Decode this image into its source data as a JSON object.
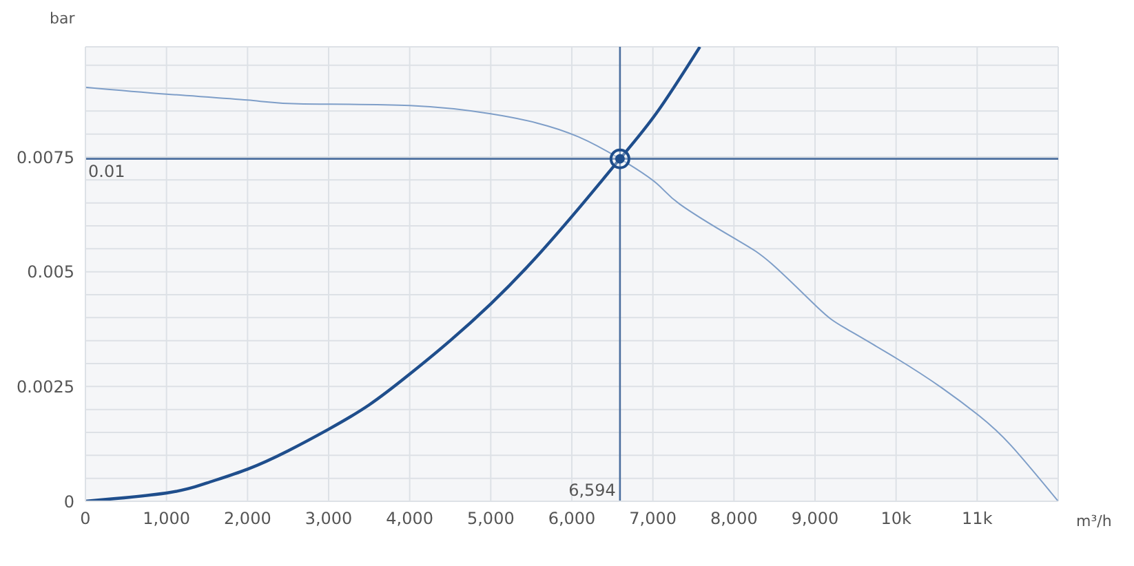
{
  "chart_data": {
    "type": "line",
    "xlabel": "m³/h",
    "ylabel": "bar",
    "xlim": [
      0,
      12000
    ],
    "ylim": [
      0,
      0.0099
    ],
    "xticks": [
      0,
      {
        "value": 1000,
        "label": "1,000"
      },
      {
        "value": 2000,
        "label": "2,000"
      },
      {
        "value": 3000,
        "label": "3,000"
      },
      {
        "value": 4000,
        "label": "4,000"
      },
      {
        "value": 5000,
        "label": "5,000"
      },
      {
        "value": 6000,
        "label": "6,000"
      },
      {
        "value": 7000,
        "label": "7,000"
      },
      {
        "value": 8000,
        "label": "8,000"
      },
      {
        "value": 9000,
        "label": "9,000"
      },
      {
        "value": 10000,
        "label": "10k"
      },
      {
        "value": 11000,
        "label": "11k"
      }
    ],
    "yticks": [
      0,
      {
        "value": 0.0005,
        "label": null
      },
      {
        "value": 0.001,
        "label": null
      },
      {
        "value": 0.0015,
        "label": null
      },
      {
        "value": 0.002,
        "label": null
      },
      0.0025,
      {
        "value": 0.003,
        "label": null
      },
      {
        "value": 0.0035,
        "label": null
      },
      {
        "value": 0.004,
        "label": null
      },
      {
        "value": 0.0045,
        "label": null
      },
      0.005,
      {
        "value": 0.0055,
        "label": null
      },
      {
        "value": 0.006,
        "label": null
      },
      {
        "value": 0.0065,
        "label": null
      },
      {
        "value": 0.007,
        "label": null
      },
      0.0075,
      {
        "value": 0.008,
        "label": null
      },
      {
        "value": 0.0085,
        "label": null
      },
      {
        "value": 0.009,
        "label": null
      },
      {
        "value": 0.0095,
        "label": null
      }
    ],
    "grid": true,
    "line_style": "solid",
    "series": [
      {
        "type": "line",
        "color": "#7e9ec8",
        "marker": "none",
        "x": [
          0,
          1000,
          2000,
          2623,
          4000,
          5000,
          5570,
          6080,
          6594,
          7050,
          7333,
          8013,
          8467,
          9034,
          9374,
          9998,
          10565,
          11019,
          11415,
          12000
        ],
        "values": [
          0.00902,
          0.00887,
          0.00874,
          0.00866,
          0.00862,
          0.00844,
          0.00824,
          0.00794,
          0.00746,
          0.00692,
          0.00647,
          0.00572,
          0.00517,
          0.00422,
          0.00377,
          0.00312,
          0.00247,
          0.00187,
          0.00122,
          0
        ]
      },
      {
        "type": "line",
        "color": "#1f4e8c",
        "marker": "none",
        "x": [
          0,
          1000,
          1500,
          2000,
          2500,
          3000,
          3500,
          4000,
          4500,
          5000,
          5500,
          6080,
          6594,
          7050,
          7580
        ],
        "values": [
          0,
          0.00018,
          0.0004,
          0.0007,
          0.0011,
          0.00157,
          0.0021,
          0.00277,
          0.0035,
          0.0043,
          0.0052,
          0.00637,
          0.00746,
          0.00847,
          0.0099
        ]
      },
      {
        "type": "scatter",
        "color": "#1f4e8c",
        "marker": "circle",
        "x": [
          6594
        ],
        "values": [
          0.00746
        ]
      }
    ],
    "ref_lines": [
      {
        "axis": "y",
        "value": 0.00746,
        "label": "0.01",
        "color": "#4a6e9e"
      },
      {
        "axis": "x",
        "value": 6594,
        "label": "6,594",
        "color": "#4a6e9e"
      }
    ]
  }
}
